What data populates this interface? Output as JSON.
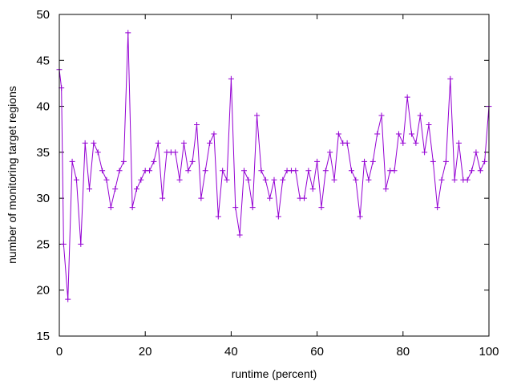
{
  "chart_data": {
    "type": "line",
    "xlabel": "runtime (percent)",
    "ylabel": "number of monitoring target regions",
    "xlim": [
      0,
      100
    ],
    "ylim": [
      15,
      50
    ],
    "xticks": [
      0,
      20,
      40,
      60,
      80,
      100
    ],
    "yticks": [
      15,
      20,
      25,
      30,
      35,
      40,
      45,
      50
    ],
    "grid": false,
    "legend": "none",
    "marker": "plus",
    "series": [
      {
        "color": "#9400d3",
        "x": [
          0,
          0.5,
          1,
          2,
          3,
          4,
          5,
          6,
          7,
          8,
          9,
          10,
          11,
          12,
          13,
          14,
          15,
          16,
          17,
          18,
          19,
          20,
          21,
          22,
          23,
          24,
          25,
          26,
          27,
          28,
          29,
          30,
          31,
          32,
          33,
          34,
          35,
          36,
          37,
          38,
          39,
          40,
          41,
          42,
          43,
          44,
          45,
          46,
          47,
          48,
          49,
          50,
          51,
          52,
          53,
          54,
          55,
          56,
          57,
          58,
          59,
          60,
          61,
          62,
          63,
          64,
          65,
          66,
          67,
          68,
          69,
          70,
          71,
          72,
          73,
          74,
          75,
          76,
          77,
          78,
          79,
          80,
          81,
          82,
          83,
          84,
          85,
          86,
          87,
          88,
          89,
          90,
          91,
          92,
          93,
          94,
          95,
          96,
          97,
          98,
          99,
          100
        ],
        "y": [
          44,
          42,
          25,
          19,
          34,
          32,
          25,
          36,
          31,
          36,
          35,
          33,
          32,
          29,
          31,
          33,
          34,
          48,
          29,
          31,
          32,
          33,
          33,
          34,
          36,
          30,
          35,
          35,
          35,
          32,
          36,
          33,
          34,
          38,
          30,
          33,
          36,
          37,
          28,
          33,
          32,
          43,
          29,
          26,
          33,
          32,
          29,
          39,
          33,
          32,
          30,
          32,
          28,
          32,
          33,
          33,
          33,
          30,
          30,
          33,
          31,
          34,
          29,
          33,
          35,
          32,
          37,
          36,
          36,
          33,
          32,
          28,
          34,
          32,
          34,
          37,
          39,
          31,
          33,
          33,
          37,
          36,
          41,
          37,
          36,
          39,
          35,
          38,
          34,
          29,
          32,
          34,
          43,
          32,
          36,
          32,
          32,
          33,
          35,
          33,
          34,
          40
        ]
      }
    ]
  }
}
